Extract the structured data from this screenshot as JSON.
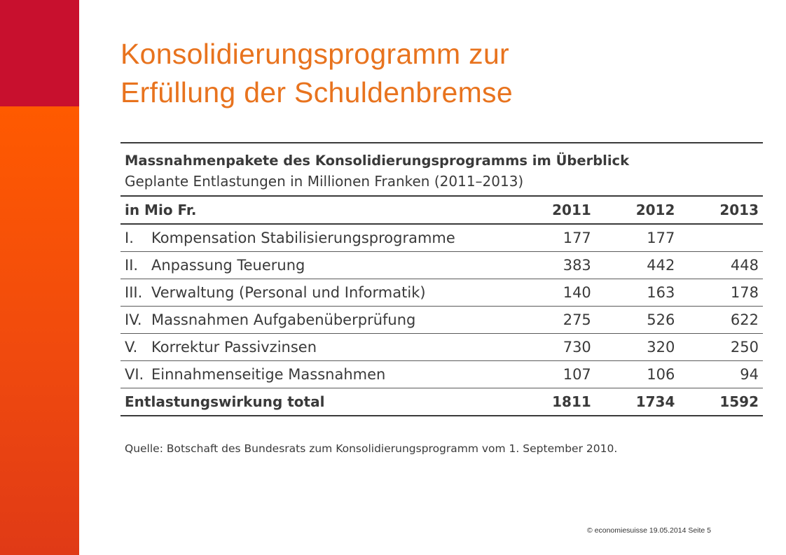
{
  "title": {
    "line1": "Konsolidierungsprogramm zur",
    "line2": "Erfüllung der Schuldenbremse"
  },
  "colors": {
    "title": "#e8731e",
    "sidebar_top": "#c8102e",
    "sidebar_bottom": "#ff5a00"
  },
  "table": {
    "heading": "Massnahmenpakete des Konsolidierungsprogramms im Überblick",
    "subheading": "Geplante Entlastungen in Millionen Franken (2011–2013)",
    "columns": [
      "in Mio Fr.",
      "2011",
      "2012",
      "2013"
    ],
    "rows": [
      {
        "numeral": "I.",
        "label": "Kompensation Stabilisierungsprogramme",
        "v2011": "177",
        "v2012": "177",
        "v2013": ""
      },
      {
        "numeral": "II.",
        "label": "Anpassung Teuerung",
        "v2011": "383",
        "v2012": "442",
        "v2013": "448"
      },
      {
        "numeral": "III.",
        "label": "Verwaltung (Personal und Informatik)",
        "v2011": "140",
        "v2012": "163",
        "v2013": "178"
      },
      {
        "numeral": "IV.",
        "label": "Massnahmen Aufgabenüberprüfung",
        "v2011": "275",
        "v2012": "526",
        "v2013": "622"
      },
      {
        "numeral": "V.",
        "label": "Korrektur Passivzinsen",
        "v2011": "730",
        "v2012": "320",
        "v2013": "250"
      },
      {
        "numeral": "VI.",
        "label": "Einnahmenseitige Massnahmen",
        "v2011": "107",
        "v2012": "106",
        "v2013": "94"
      }
    ],
    "total": {
      "label": "Entlastungswirkung total",
      "v2011": "1811",
      "v2012": "1734",
      "v2013": "1592"
    },
    "source": "Quelle: Botschaft des Bundesrats zum Konsolidierungsprogramm vom 1. September 2010."
  },
  "footer": "© economiesuisse 19.05.2014  Seite 5"
}
